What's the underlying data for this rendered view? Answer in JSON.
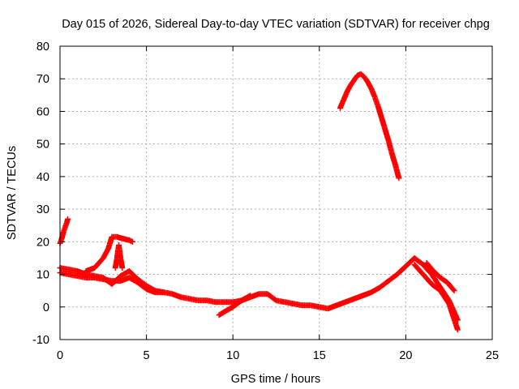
{
  "chart_data": {
    "type": "scatter",
    "title": "Day 015 of 2026, Sidereal Day-to-day VTEC variation (SDTVAR) for receiver chpg",
    "xlabel": "GPS time / hours",
    "ylabel": "SDTVAR / TECUs",
    "xlim": [
      0,
      25
    ],
    "ylim": [
      -10,
      80
    ],
    "grid": true,
    "legend": "none",
    "marker": "+",
    "marker_color": "#ff0000",
    "x_ticks": [
      {
        "value": 0,
        "label": "0"
      },
      {
        "value": 5,
        "label": "5"
      },
      {
        "value": 10,
        "label": "10"
      },
      {
        "value": 15,
        "label": "15"
      },
      {
        "value": 20,
        "label": "20"
      },
      {
        "value": 25,
        "label": "25"
      }
    ],
    "y_ticks": [
      {
        "value": -10,
        "label": "-10"
      },
      {
        "value": 0,
        "label": "0"
      },
      {
        "value": 10,
        "label": "10"
      },
      {
        "value": 20,
        "label": "20"
      },
      {
        "value": 30,
        "label": "30"
      },
      {
        "value": 40,
        "label": "40"
      },
      {
        "value": 50,
        "label": "50"
      },
      {
        "value": 60,
        "label": "60"
      },
      {
        "value": 70,
        "label": "70"
      },
      {
        "value": 80,
        "label": "80"
      }
    ],
    "series": [
      {
        "name": "early-rise",
        "x": [
          0.0,
          0.1,
          0.2,
          0.3,
          0.4,
          0.45
        ],
        "y": [
          19.5,
          21,
          23,
          24.5,
          26,
          27
        ]
      },
      {
        "name": "main-low",
        "x": [
          0.0,
          0.5,
          1.0,
          1.5,
          2.0,
          2.5,
          3.0,
          3.5,
          4.0,
          4.5,
          5.0,
          5.5,
          6.0,
          6.5,
          7.0,
          7.5,
          8.0,
          8.5,
          9.0,
          9.5,
          10.0,
          10.5,
          11.0,
          11.5,
          12.0,
          12.5,
          13.0,
          13.5,
          14.0,
          14.5,
          15.0,
          15.5,
          16.0,
          16.5,
          17.0,
          17.5,
          18.0,
          18.5,
          19.0,
          19.5,
          20.0,
          20.5,
          21.0,
          21.5,
          22.0,
          22.5,
          23.0
        ],
        "y": [
          10.5,
          10,
          9.5,
          9,
          9,
          8.5,
          8,
          8,
          9,
          7.5,
          5.5,
          4.5,
          4.5,
          4,
          3,
          2.5,
          2,
          2,
          1.5,
          1.5,
          1.5,
          2,
          3,
          4,
          4,
          2,
          1.5,
          1,
          0.5,
          0.5,
          0,
          -0.5,
          0.5,
          1.5,
          2.5,
          3.5,
          4.5,
          6,
          8,
          10,
          12.5,
          15,
          13,
          10,
          6,
          2,
          -4
        ]
      },
      {
        "name": "second-band",
        "x": [
          0.0,
          0.5,
          1.0,
          1.5,
          2.0,
          2.5,
          3.0,
          3.5,
          4.0,
          4.5,
          5.0,
          5.5,
          6.0
        ],
        "y": [
          12,
          11.5,
          11,
          10,
          9.5,
          9,
          7,
          9.5,
          11,
          8.5,
          6.5,
          5,
          4.5
        ]
      },
      {
        "name": "hump-2-4h",
        "x": [
          1.5,
          2.0,
          2.5,
          2.8,
          3.0,
          3.3,
          3.6,
          4.0,
          4.2
        ],
        "y": [
          11,
          12,
          15,
          18,
          21.5,
          21.5,
          21,
          20.5,
          20
        ]
      },
      {
        "name": "spike-3h",
        "x": [
          3.2,
          3.3,
          3.4,
          3.5,
          3.6
        ],
        "y": [
          12,
          15,
          19,
          15,
          12
        ]
      },
      {
        "name": "dip-9-10h",
        "x": [
          9.2,
          9.5,
          10.0,
          10.5,
          11.0
        ],
        "y": [
          -2.5,
          -1.5,
          0,
          2,
          3.5
        ]
      },
      {
        "name": "high-arc",
        "x": [
          16.2,
          16.4,
          16.6,
          16.8,
          17.0,
          17.2,
          17.4,
          17.6,
          17.8,
          18.0,
          18.2,
          18.4,
          18.6,
          18.8,
          19.0,
          19.2,
          19.4,
          19.6
        ],
        "y": [
          61,
          63.5,
          66,
          68,
          69.5,
          71,
          71.5,
          70.5,
          69,
          67,
          64.5,
          61.5,
          58,
          54.5,
          51,
          47,
          43.5,
          39.5
        ]
      },
      {
        "name": "tail-21-23h",
        "x": [
          20.5,
          21.0,
          21.5,
          22.0,
          22.5,
          23.0
        ],
        "y": [
          13,
          10,
          7,
          5,
          1,
          -7
        ]
      },
      {
        "name": "offsets-21-22h",
        "x": [
          21.2,
          21.6,
          22.0,
          22.4,
          22.8
        ],
        "y": [
          13.5,
          11,
          9,
          7.5,
          5
        ]
      }
    ]
  }
}
